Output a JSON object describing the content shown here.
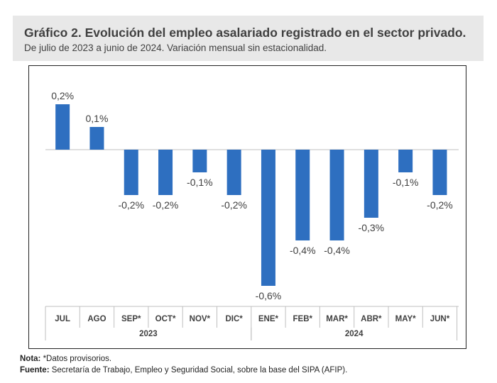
{
  "header": {
    "title": "Gráfico 2. Evolución del empleo asalariado registrado en el sector privado.",
    "subtitle": "De julio de 2023 a junio de 2024. Variación mensual sin estacionalidad."
  },
  "chart_data": {
    "type": "bar",
    "categories": [
      "JUL",
      "AGO",
      "SEP*",
      "OCT*",
      "NOV*",
      "DIC*",
      "ENE*",
      "FEB*",
      "MAR*",
      "ABR*",
      "MAY*",
      "JUN*"
    ],
    "values": [
      0.2,
      0.1,
      -0.2,
      -0.2,
      -0.1,
      -0.2,
      -0.6,
      -0.4,
      -0.4,
      -0.3,
      -0.1,
      -0.2
    ],
    "labels": [
      "0,2%",
      "0,1%",
      "-0,2%",
      "-0,2%",
      "-0,1%",
      "-0,2%",
      "-0,6%",
      "-0,4%",
      "-0,4%",
      "-0,3%",
      "-0,1%",
      "-0,2%"
    ],
    "groups": [
      {
        "name": "2023",
        "start": 0,
        "end": 5
      },
      {
        "name": "2024",
        "start": 6,
        "end": 11
      }
    ],
    "unit": "%",
    "bar_color": "#2e6fc0",
    "ylim": [
      -0.6,
      0.2
    ]
  },
  "notes": {
    "nota_label": "Nota:",
    "nota_text": " *Datos provisorios.",
    "fuente_label": "Fuente:",
    "fuente_text": " Secretaría de Trabajo, Empleo y Seguridad Social, sobre la base del SIPA (AFIP)."
  }
}
